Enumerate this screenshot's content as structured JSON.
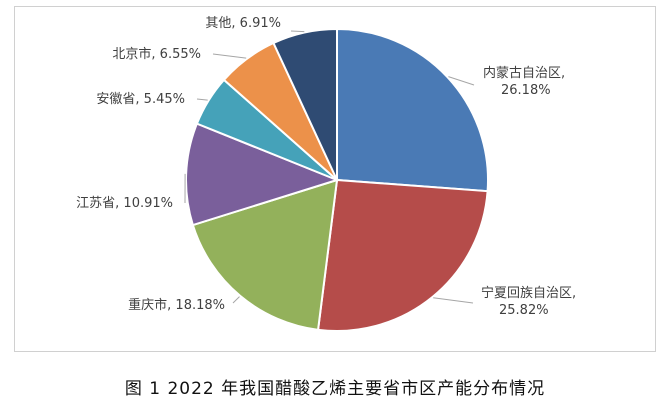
{
  "caption": "图 1  2022 年我国醋酸乙烯主要省市区产能分布情况",
  "chart_data": {
    "type": "pie",
    "title": "",
    "start_angle": "12 o'clock",
    "direction": "clockwise",
    "slices": [
      {
        "label": "内蒙古自治区",
        "value": 26.18,
        "display": "26.18%",
        "color": "#4a7ab5",
        "label_lines": [
          "内蒙古自治区,",
          "26.18%"
        ]
      },
      {
        "label": "宁夏回族自治区",
        "value": 25.82,
        "display": "25.82%",
        "color": "#b54c4a",
        "label_lines": [
          "宁夏回族自治区,",
          "25.82%"
        ]
      },
      {
        "label": "重庆市",
        "value": 18.18,
        "display": "18.18%",
        "color": "#93b15b",
        "label_lines": [
          "重庆市, 18.18%"
        ]
      },
      {
        "label": "江苏省",
        "value": 10.91,
        "display": "10.91%",
        "color": "#7a5f9b",
        "label_lines": [
          "江苏省, 10.91%"
        ]
      },
      {
        "label": "安徽省",
        "value": 5.45,
        "display": "5.45%",
        "color": "#45a2b9",
        "label_lines": [
          "安徽省, 5.45%"
        ]
      },
      {
        "label": "北京市",
        "value": 6.55,
        "display": "6.55%",
        "color": "#ec914a",
        "label_lines": [
          "北京市, 6.55%"
        ]
      },
      {
        "label": "其他",
        "value": 6.91,
        "display": "6.91%",
        "color": "#2f4b73",
        "label_lines": [
          "其他, 6.91%"
        ]
      }
    ]
  }
}
